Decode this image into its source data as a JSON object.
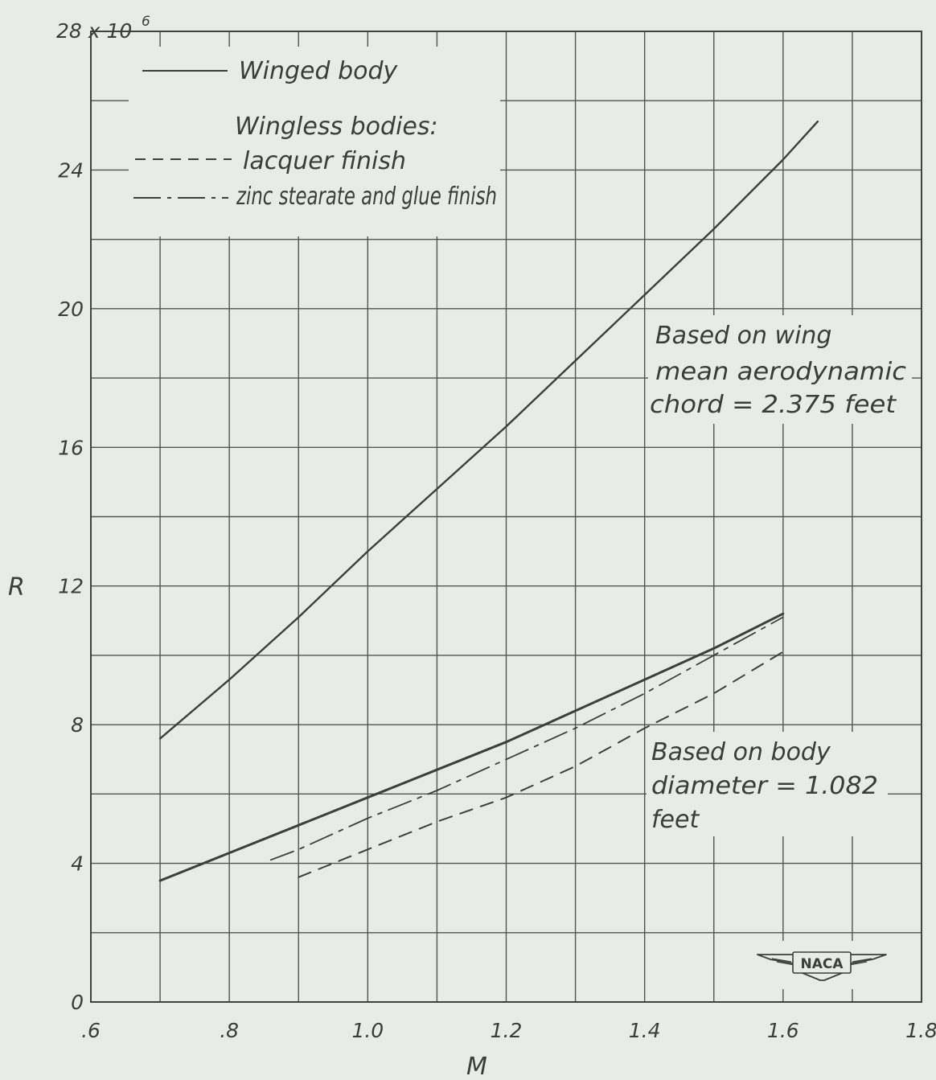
{
  "chart_data": {
    "type": "line",
    "title": "",
    "xlabel": "M",
    "ylabel": "R",
    "xlim": [
      0.6,
      1.8
    ],
    "ylim": [
      0,
      28
    ],
    "x_ticks": [
      ".6",
      ".8",
      "1.0",
      "1.2",
      "1.4",
      "1.6",
      "1.8"
    ],
    "y_ticks": [
      "0",
      "4",
      "8",
      "12",
      "16",
      "20",
      "24",
      "28 x 10"
    ],
    "y_multiplier_exponent": "6",
    "grid": true,
    "legend": {
      "placement": "top-left",
      "group_heading": "Wingless bodies:"
    },
    "series": [
      {
        "name": "Winged body",
        "style": "solid",
        "x": [
          0.7,
          0.8,
          0.9,
          1.0,
          1.1,
          1.2,
          1.3,
          1.4,
          1.5,
          1.6,
          1.65
        ],
        "y": [
          7.6,
          9.3,
          11.1,
          13.0,
          14.8,
          16.6,
          18.5,
          20.4,
          22.3,
          24.3,
          25.4
        ]
      },
      {
        "name": "",
        "style": "solid",
        "x": [
          0.7,
          0.8,
          0.9,
          1.0,
          1.1,
          1.2,
          1.3,
          1.4,
          1.5,
          1.6
        ],
        "y": [
          3.5,
          4.3,
          5.1,
          5.9,
          6.7,
          7.5,
          8.4,
          9.3,
          10.2,
          11.2
        ]
      },
      {
        "name": "lacquer finish",
        "style": "dashed",
        "x": [
          0.9,
          1.0,
          1.1,
          1.2,
          1.3,
          1.4,
          1.5,
          1.6
        ],
        "y": [
          3.6,
          4.4,
          5.2,
          5.9,
          6.8,
          7.9,
          8.9,
          10.1
        ]
      },
      {
        "name": "zinc stearate and glue finish",
        "style": "dashdot",
        "x": [
          0.86,
          0.9,
          1.0,
          1.1,
          1.2,
          1.3,
          1.4,
          1.5,
          1.6
        ],
        "y": [
          4.1,
          4.4,
          5.3,
          6.1,
          7.0,
          7.9,
          8.9,
          10.0,
          11.1
        ]
      }
    ],
    "annotations": [
      {
        "lines": [
          "Based on wing",
          "mean aerodynamic",
          "chord = 2.375 feet"
        ]
      },
      {
        "lines": [
          "Based on body",
          "diameter = 1.082",
          "feet"
        ]
      }
    ],
    "logo": "NACA"
  }
}
